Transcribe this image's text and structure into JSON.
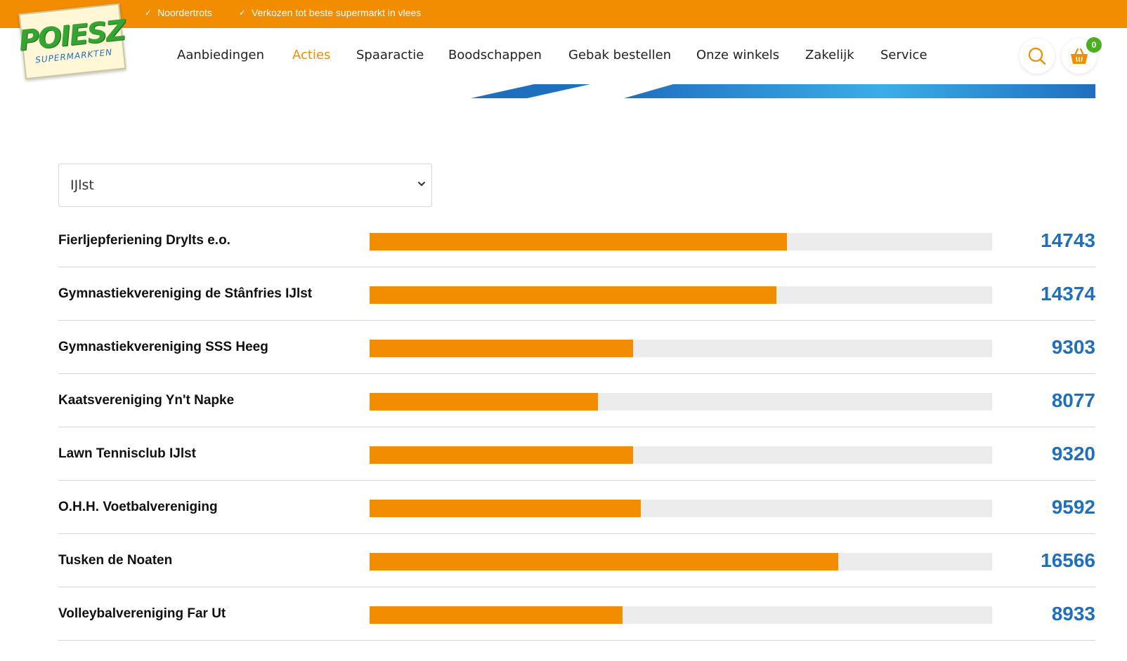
{
  "topbar": {
    "usps": [
      "Noordertrots",
      "Verkozen tot beste supermarkt in vlees"
    ]
  },
  "logo": {
    "main": "POIESZ",
    "sub": "SUPERMARKTEN"
  },
  "nav": {
    "items": [
      "Aanbiedingen",
      "Acties",
      "Spaaractie",
      "Boodschappen",
      "Gebak bestellen",
      "Onze winkels",
      "Zakelijk",
      "Service"
    ],
    "active": "Acties"
  },
  "header": {
    "cart_count": "0",
    "search_icon": "search-icon",
    "cart_icon": "basket-icon"
  },
  "filter": {
    "selected": "IJlst"
  },
  "colors": {
    "orange": "#f28c00",
    "blue": "#1f6fbf",
    "green": "#4caf22",
    "track": "#ececec"
  },
  "max_value": 22000,
  "rows": [
    {
      "name": "Fierljepferiening Drylts e.o.",
      "value": "14743"
    },
    {
      "name": "Gymnastiekvereniging de Stânfries IJlst",
      "value": "14374"
    },
    {
      "name": "Gymnastiekvereniging SSS Heeg",
      "value": "9303"
    },
    {
      "name": "Kaatsvereniging Yn't Napke",
      "value": "8077"
    },
    {
      "name": "Lawn Tennisclub IJlst",
      "value": "9320"
    },
    {
      "name": "O.H.H. Voetbalvereniging",
      "value": "9592"
    },
    {
      "name": "Tusken de Noaten",
      "value": "16566"
    },
    {
      "name": "Volleybalvereniging Far Ut",
      "value": "8933"
    }
  ]
}
